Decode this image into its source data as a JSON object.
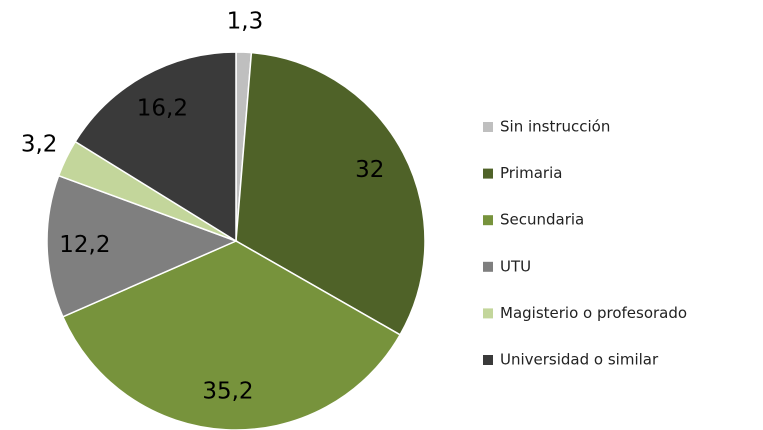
{
  "chart_data": {
    "type": "pie",
    "categories": [
      "Sin instrucción",
      "Primaria",
      "Secundaria",
      "UTU",
      "Magisterio o profesorado",
      "Universidad o similar"
    ],
    "values": [
      1.3,
      32,
      35.2,
      12.2,
      3.2,
      16.2
    ],
    "value_labels": [
      "1,3",
      "32",
      "35,2",
      "12,2",
      "3,2",
      "16,2"
    ],
    "colors": [
      "#bfbfbf",
      "#4f6228",
      "#77933c",
      "#7f7f7f",
      "#c3d69b",
      "#3a3a3a"
    ],
    "legend": "right"
  }
}
